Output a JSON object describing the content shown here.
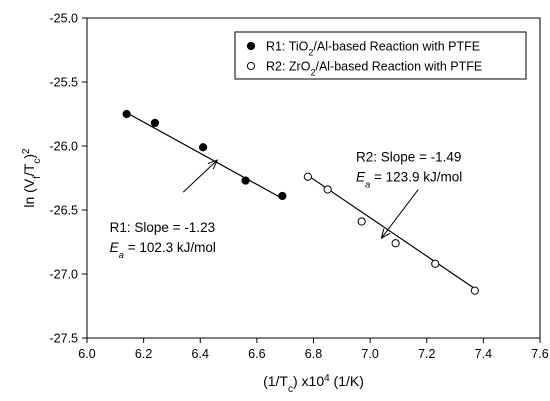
{
  "chart_data": {
    "type": "scatter",
    "xlabel": "(1/T_c) x10^4 (1/K)",
    "ylabel": "ln (V_f/T_c)^2",
    "xlim": [
      6.0,
      7.6
    ],
    "ylim": [
      -27.5,
      -25.0
    ],
    "x_ticks": [
      "6.0",
      "6.2",
      "6.4",
      "6.6",
      "6.8",
      "7.0",
      "7.2",
      "7.4",
      "7.6"
    ],
    "y_ticks": [
      "-25.0",
      "-25.5",
      "-26.0",
      "-26.5",
      "-27.0",
      "-27.5"
    ],
    "grid": false,
    "legend_position": "top-right",
    "legend": [
      {
        "series": "R1",
        "text": "R1: TiO2/Al-based Reaction with PTFE",
        "marker": "filled-circle"
      },
      {
        "series": "R2",
        "text": "R2: ZrO2/Al-based Reaction with PTFE",
        "marker": "open-circle"
      }
    ],
    "series": [
      {
        "name": "R1",
        "marker": "filled-circle",
        "x": [
          6.14,
          6.24,
          6.41,
          6.56,
          6.69
        ],
        "y": [
          -25.75,
          -25.82,
          -26.01,
          -26.27,
          -26.39
        ],
        "fit": {
          "x": [
            6.14,
            6.69
          ],
          "y": [
            -25.74,
            -26.41
          ]
        }
      },
      {
        "name": "R2",
        "marker": "open-circle",
        "x": [
          6.78,
          6.85,
          6.97,
          7.09,
          7.23,
          7.37
        ],
        "y": [
          -26.24,
          -26.34,
          -26.59,
          -26.76,
          -26.92,
          -27.13
        ],
        "fit": {
          "x": [
            6.78,
            7.38
          ],
          "y": [
            -26.23,
            -27.13
          ]
        }
      }
    ],
    "annotations": [
      {
        "series": "R1",
        "slope_text": "R1: Slope = -1.23",
        "ea_text": "= 102.3 kJ/mol",
        "arrow_from": [
          6.34,
          -26.36
        ],
        "arrow_to": [
          6.46,
          -26.11
        ],
        "text_at": [
          6.08,
          -26.67
        ]
      },
      {
        "series": "R2",
        "slope_text": "R2: Slope = -1.49",
        "ea_text": "= 123.9 kJ/mol",
        "arrow_from": [
          7.17,
          -26.34
        ],
        "arrow_to": [
          7.04,
          -26.72
        ],
        "text_at": [
          6.95,
          -26.12
        ]
      }
    ]
  }
}
